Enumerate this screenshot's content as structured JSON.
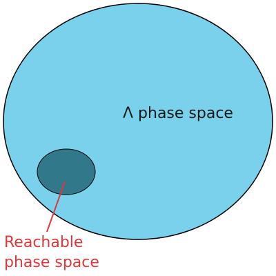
{
  "diagram": {
    "outer_region": {
      "label": "Λ phase space",
      "fill": "#79d1eb",
      "stroke": "#000000"
    },
    "inner_region": {
      "label_line1": "Reachable",
      "label_line2": "phase space",
      "fill": "#31798a",
      "label_color": "#dc3a3a",
      "pointer_color": "#dc3a3a"
    }
  }
}
